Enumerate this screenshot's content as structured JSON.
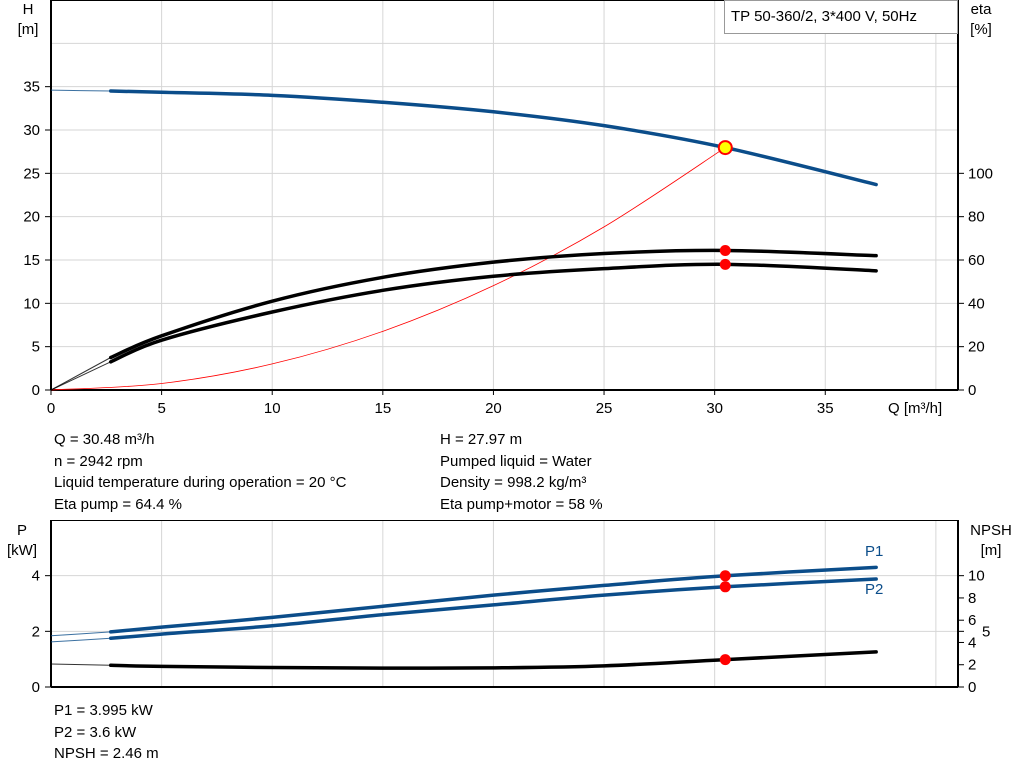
{
  "title": "TP 50-360/2, 3*400 V, 50Hz",
  "colors": {
    "head": "#0b4d8a",
    "efficiency": "#000000",
    "system": "#ff0000",
    "power": "#0b4d8a",
    "npsh": "#000000",
    "marker": "#ff0000",
    "duty_marker_fill": "#ffff00"
  },
  "chart_data": [
    {
      "type": "line",
      "xlabel": "Q [m³/h]",
      "ylabel_left": [
        "H",
        "[m]"
      ],
      "ylabel_right": [
        "eta",
        "[%]"
      ],
      "xlim": [
        0,
        41
      ],
      "ylim_left": [
        0,
        45
      ],
      "ylim_right": [
        0,
        180
      ],
      "x_ticks": [
        0,
        5,
        10,
        15,
        20,
        25,
        30,
        35
      ],
      "y_ticks_left": [
        0,
        5,
        10,
        15,
        20,
        25,
        30,
        35
      ],
      "y_ticks_right": [
        0,
        20,
        40,
        60,
        80,
        100
      ],
      "grid": true,
      "x": [
        0,
        2.7,
        5,
        10,
        15,
        20,
        25,
        30.48,
        37.3
      ],
      "series": [
        {
          "key": "H",
          "axis": "left",
          "values": [
            34.6,
            34.5,
            34.35,
            34.0,
            33.2,
            32.1,
            30.5,
            27.97,
            23.7
          ]
        },
        {
          "key": "eta_pump",
          "axis": "right",
          "values": [
            0,
            15,
            25,
            41,
            52,
            59,
            63,
            64.4,
            62
          ]
        },
        {
          "key": "eta_pump_motor",
          "axis": "right",
          "values": [
            0,
            13,
            23,
            36,
            46,
            52.5,
            56,
            58,
            55
          ]
        }
      ],
      "system_curve": {
        "x": [
          0,
          5,
          10,
          15,
          20,
          25,
          30.48
        ],
        "values": [
          0,
          0.75,
          3.01,
          6.77,
          12.04,
          18.82,
          27.97
        ]
      },
      "duty_point": {
        "Q": 30.48,
        "H": 27.97,
        "eta_pump": 64.4,
        "eta_pump_motor": 58
      }
    },
    {
      "type": "line",
      "ylabel_left": [
        "P",
        "[kW]"
      ],
      "ylabel_right": [
        "NPSH",
        "[m]"
      ],
      "xlim": [
        0,
        41
      ],
      "ylim_left": [
        0,
        6
      ],
      "ylim_right": [
        0,
        15
      ],
      "y_ticks_left": [
        0,
        2,
        4
      ],
      "y_ticks_right": [
        0,
        2,
        4,
        5,
        6,
        8,
        10
      ],
      "grid": true,
      "x": [
        0,
        2.7,
        5,
        10,
        15,
        20,
        25,
        30.48,
        37.3
      ],
      "series": [
        {
          "key": "P1",
          "name": "P1",
          "axis": "left",
          "values": [
            1.84,
            1.98,
            2.15,
            2.5,
            2.9,
            3.3,
            3.65,
            3.995,
            4.3
          ]
        },
        {
          "key": "P2",
          "name": "P2",
          "axis": "left",
          "values": [
            1.62,
            1.75,
            1.9,
            2.2,
            2.6,
            2.95,
            3.3,
            3.6,
            3.88
          ]
        },
        {
          "key": "NPSH",
          "axis": "right",
          "values": [
            2.07,
            1.95,
            1.85,
            1.75,
            1.7,
            1.72,
            1.9,
            2.46,
            3.15
          ]
        }
      ],
      "duty_point": {
        "Q": 30.48,
        "P1": 3.995,
        "P2": 3.6,
        "NPSH": 2.46
      }
    }
  ],
  "info_left": [
    "Q = 30.48 m³/h",
    "n = 2942 rpm",
    "Liquid temperature during operation = 20 °C",
    "Eta pump = 64.4 %"
  ],
  "info_right": [
    "H = 27.97 m",
    "Pumped liquid = Water",
    "Density = 998.2 kg/m³",
    "Eta pump+motor = 58 %"
  ],
  "info_bottom": [
    "P1 = 3.995 kW",
    "P2 = 3.6 kW",
    "NPSH = 2.46 m"
  ]
}
